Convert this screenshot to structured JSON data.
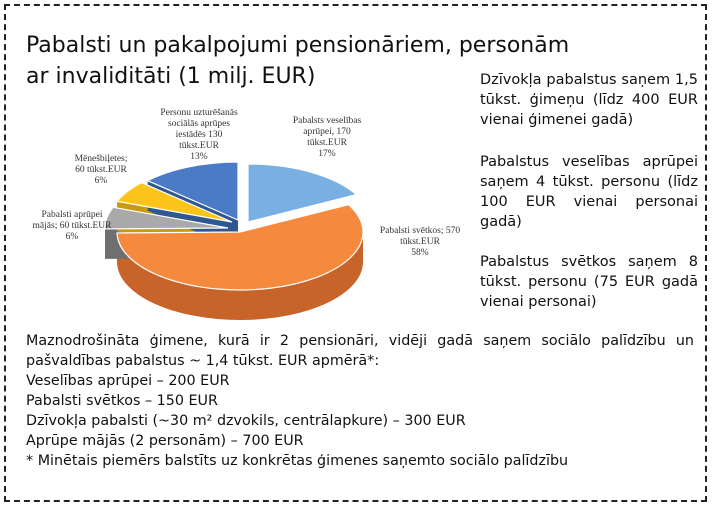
{
  "title": "Pabalsti un pakalpojumi pensionāriem, personām ar invaliditāti (1 milj. EUR)",
  "side_notes": [
    "Dzīvokļa pabalstus saņem 1,5 tūkst. ģimeņu (līdz 400 EUR vienai ģimenei gadā)",
    "Pabalstus veselības aprūpei saņem 4 tūkst. personu (līdz 100 EUR vienai personai gadā)",
    "Pabalstus svētkos saņem 8 tūkst. personu (75 EUR gadā vienai personai)"
  ],
  "bottom": {
    "intro": "Maznodrošināta ģimene, kurā ir 2 pensionāri, vidēji gadā saņem sociālo palīdzību un pašvaldības pabalstus ~ 1,4 tūkst. EUR apmērā*:",
    "items": [
      "Veselības aprūpei – 200 EUR",
      "Pabalsti svētkos – 150 EUR",
      "Dzīvokļa pabalsti (~30 m² dzvokils, centrālapkure) – 300 EUR",
      "Aprūpe mājās (2 personām) – 700 EUR"
    ],
    "footnote": "* Minētais piemērs balstīts uz konkrētas ģimenes saņemto sociālo palīdzību"
  },
  "chart_data": {
    "type": "pie",
    "title": "",
    "unit": "tūkst.EUR",
    "slices": [
      {
        "name": "Pabalsti veselības aprūpei",
        "value": 170,
        "percent": 17,
        "color": "#7aafe4",
        "side": "#4f86bf",
        "label_lines": [
          "Pabalsts veselības",
          "aprūpei, 170",
          "tūkst.EUR",
          "17%"
        ]
      },
      {
        "name": "Pabalsti svētkos",
        "value": 570,
        "percent": 58,
        "color": "#f58a3e",
        "side": "#c8642a",
        "label_lines": [
          "Pabalsti svētkos; 570",
          "tūkst.EUR",
          "58%"
        ]
      },
      {
        "name": "Pabalsti aprūpei mājās",
        "value": 60,
        "percent": 6,
        "color": "#a9a9a9",
        "side": "#6f6f6f",
        "label_lines": [
          "Pabalsti aprūpei",
          "mājās; 60 tūkst.EUR",
          "6%"
        ]
      },
      {
        "name": "Mēnešbiļetes",
        "value": 60,
        "percent": 6,
        "color": "#fcc419",
        "side": "#c79a10",
        "label_lines": [
          "Mēnešbiļetes;",
          "60 tūkst.EUR",
          "6%"
        ]
      },
      {
        "name": "Personu uzturēšanās sociālās aprūpes iestādēs",
        "value": 130,
        "percent": 13,
        "color": "#4a7bc4",
        "side": "#2f5890",
        "label_lines": [
          "Personu uzturēšanās",
          "sociālās aprūpes",
          "iestādēs 130",
          "tūkst.EUR",
          "13%"
        ]
      }
    ]
  }
}
